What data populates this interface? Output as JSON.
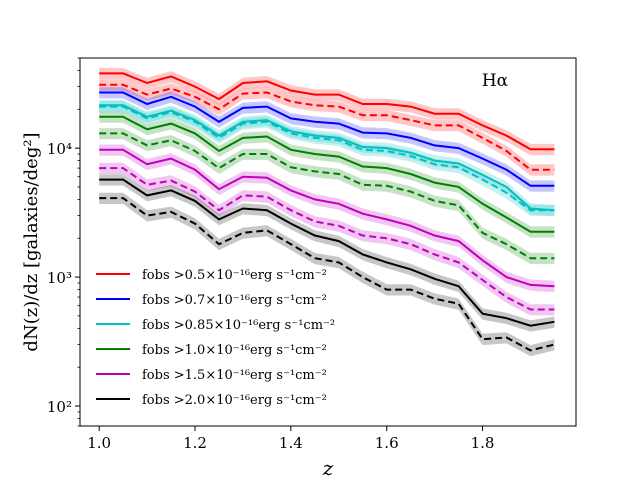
{
  "chart_data": {
    "type": "line",
    "title": "",
    "annotation": "Hα",
    "xlabel": "z",
    "ylabel": "dN(z)/dz [galaxies/deg²]",
    "yscale": "log",
    "xlim": [
      0.96,
      1.995
    ],
    "ylim": [
      70,
      50000
    ],
    "x_ticks": [
      1.0,
      1.2,
      1.4,
      1.6,
      1.8
    ],
    "x_tick_labels": [
      "1.0",
      "1.2",
      "1.4",
      "1.6",
      "1.8"
    ],
    "y_ticks": [
      100,
      1000,
      10000
    ],
    "y_tick_labels": [
      "10²",
      "10³",
      "10⁴"
    ],
    "band_fraction": 0.1,
    "legend_position": "lower-left",
    "x": [
      1.0,
      1.05,
      1.1,
      1.15,
      1.2,
      1.25,
      1.3,
      1.35,
      1.4,
      1.45,
      1.5,
      1.55,
      1.6,
      1.65,
      1.7,
      1.75,
      1.8,
      1.85,
      1.9,
      1.95
    ],
    "series": [
      {
        "name": "f_obs > 0.5×10⁻¹⁶ erg s⁻¹cm⁻²",
        "color": "#ff0000",
        "legend_label": "fobs >0.5×10⁻¹⁶erg s⁻¹cm⁻²",
        "solid": [
          38000,
          38000,
          32000,
          36000,
          30000,
          24000,
          32000,
          33000,
          28000,
          26000,
          26000,
          22000,
          22000,
          21000,
          18500,
          18500,
          15000,
          12500,
          9800,
          9800
        ],
        "dashed": [
          31000,
          31000,
          26000,
          29000,
          25000,
          20000,
          26500,
          27000,
          23000,
          21500,
          21000,
          18000,
          18000,
          16500,
          15000,
          15000,
          12000,
          9500,
          6800,
          6800
        ]
      },
      {
        "name": "f_obs > 0.7×10⁻¹⁶ erg s⁻¹cm⁻²",
        "color": "#0000ff",
        "legend_label": "fobs >0.7×10⁻¹⁶erg s⁻¹cm⁻²",
        "solid": [
          27000,
          27000,
          22000,
          25000,
          21000,
          16000,
          20500,
          21000,
          17000,
          16000,
          15500,
          13200,
          13000,
          12000,
          10500,
          10000,
          8300,
          6800,
          5100,
          5100
        ],
        "dashed": null
      },
      {
        "name": "f_obs > 0.85×10⁻¹⁶ erg s⁻¹cm⁻²",
        "color": "#00bfbf",
        "legend_label": "fobs >0.85×10⁻¹⁶erg s⁻¹cm⁻²",
        "solid": [
          21500,
          21500,
          17500,
          19500,
          16500,
          12500,
          16000,
          16500,
          13500,
          12500,
          12000,
          10200,
          10000,
          9200,
          8000,
          7600,
          6200,
          5000,
          3400,
          3300
        ],
        "dashed": [
          21000,
          21000,
          17000,
          19000,
          16000,
          12000,
          15500,
          16000,
          13000,
          12000,
          11500,
          9700,
          9500,
          8700,
          7500,
          7100,
          5700,
          4500,
          3300,
          3300
        ]
      },
      {
        "name": "f_obs > 1.0×10⁻¹⁶ erg s⁻¹cm⁻²",
        "color": "#008000",
        "legend_label": "fobs >1.0×10⁻¹⁶erg s⁻¹cm⁻²",
        "solid": [
          17500,
          17500,
          14000,
          15500,
          13000,
          9500,
          12000,
          12300,
          9700,
          9000,
          8600,
          7200,
          7000,
          6300,
          5400,
          5000,
          3700,
          2900,
          2250,
          2250
        ],
        "dashed": [
          13000,
          13000,
          10500,
          11500,
          9500,
          7000,
          9000,
          9000,
          7100,
          6600,
          6300,
          5200,
          5100,
          4600,
          3900,
          3600,
          2200,
          1800,
          1400,
          1400
        ]
      },
      {
        "name": "f_obs > 1.5×10⁻¹⁶ erg s⁻¹cm⁻²",
        "color": "#bf00bf",
        "legend_label": "fobs >1.5×10⁻¹⁶erg s⁻¹cm⁻²",
        "solid": [
          9700,
          9700,
          7500,
          8300,
          6800,
          4800,
          6000,
          5900,
          4700,
          4000,
          3700,
          3100,
          2800,
          2500,
          2100,
          1900,
          1350,
          1000,
          870,
          850
        ],
        "dashed": [
          7000,
          7000,
          5200,
          5600,
          4600,
          3300,
          4300,
          4200,
          3300,
          2700,
          2500,
          2100,
          2000,
          1800,
          1500,
          1300,
          950,
          700,
          560,
          560
        ]
      },
      {
        "name": "f_obs > 2.0×10⁻¹⁶ erg s⁻¹cm⁻²",
        "color": "#000000",
        "legend_label": "fobs >2.0×10⁻¹⁶erg s⁻¹cm⁻²",
        "solid": [
          5700,
          5700,
          4300,
          4700,
          3900,
          2800,
          3400,
          3300,
          2600,
          2100,
          1900,
          1500,
          1300,
          1150,
          970,
          850,
          520,
          480,
          420,
          450
        ],
        "dashed": [
          4100,
          4100,
          3000,
          3200,
          2600,
          1800,
          2200,
          2300,
          1800,
          1400,
          1300,
          1000,
          800,
          800,
          680,
          620,
          330,
          340,
          270,
          300
        ]
      }
    ]
  }
}
